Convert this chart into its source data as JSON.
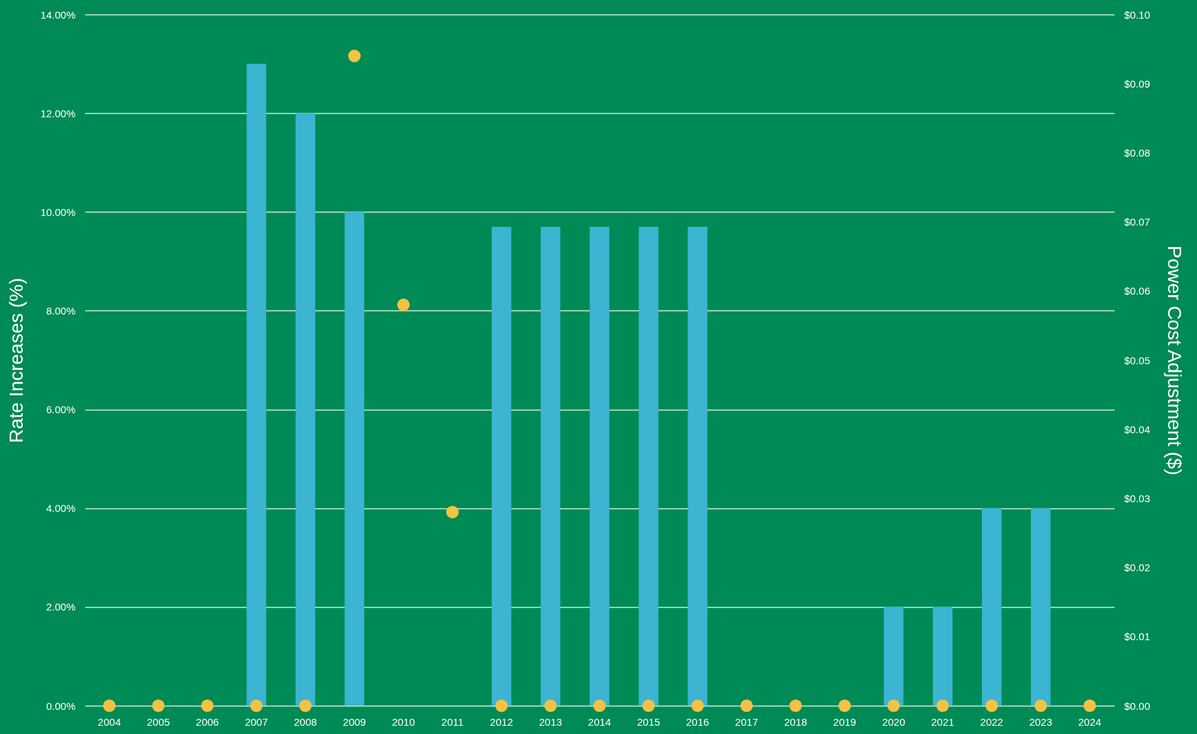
{
  "chart_data": {
    "type": "bar",
    "categories": [
      "2004",
      "2005",
      "2006",
      "2007",
      "2008",
      "2009",
      "2010",
      "2011",
      "2012",
      "2013",
      "2014",
      "2015",
      "2016",
      "2017",
      "2018",
      "2019",
      "2020",
      "2021",
      "2022",
      "2023",
      "2024"
    ],
    "series": [
      {
        "color": "#3cb4d2",
        "values": [
          0,
          0,
          0,
          13.0,
          12.0,
          10.0,
          0,
          0,
          9.7,
          9.7,
          9.7,
          9.7,
          9.7,
          0,
          0,
          0,
          2.0,
          2.0,
          4.0,
          4.0,
          0
        ]
      },
      {
        "type": "scatter",
        "axis": "y2",
        "color": "#f3c244",
        "values": [
          0,
          0,
          0,
          0,
          0,
          0.094,
          0.058,
          0.028,
          0,
          0,
          0,
          0,
          0,
          0,
          0,
          0,
          0,
          0,
          0,
          0,
          0
        ]
      }
    ],
    "ylabel": "Rate Increases (%)",
    "y2label": "Power Cost Adjustment ($)",
    "ylim": [
      0,
      14
    ],
    "yticks": [
      {
        "value": 0,
        "label": "0.00%"
      },
      {
        "value": 2,
        "label": "2.00%"
      },
      {
        "value": 4,
        "label": "4.00%"
      },
      {
        "value": 6,
        "label": "6.00%"
      },
      {
        "value": 8,
        "label": "8.00%"
      },
      {
        "value": 10,
        "label": "10.00%"
      },
      {
        "value": 12,
        "label": "12.00%"
      },
      {
        "value": 14,
        "label": "14.00%"
      }
    ],
    "y2lim": [
      0,
      0.1
    ],
    "y2ticks": [
      {
        "value": 0,
        "label": "$0.00"
      },
      {
        "value": 0.01,
        "label": "$0.01"
      },
      {
        "value": 0.02,
        "label": "$0.02"
      },
      {
        "value": 0.03,
        "label": "$0.03"
      },
      {
        "value": 0.04,
        "label": "$0.04"
      },
      {
        "value": 0.05,
        "label": "$0.05"
      },
      {
        "value": 0.06,
        "label": "$0.06"
      },
      {
        "value": 0.07,
        "label": "$0.07"
      },
      {
        "value": 0.08,
        "label": "$0.08"
      },
      {
        "value": 0.09,
        "label": "$0.09"
      },
      {
        "value": 0.1,
        "label": "$0.10"
      }
    ],
    "grid": "y",
    "marker": "circle"
  }
}
